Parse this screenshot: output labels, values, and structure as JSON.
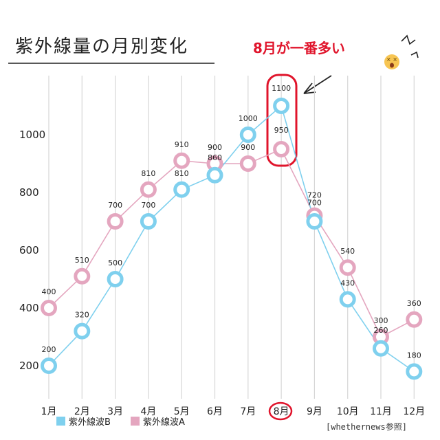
{
  "chart_data": {
    "type": "line",
    "title": "紫外線量の月別変化",
    "callout": "8月が一番多い",
    "source": "[whethernews参照]",
    "categories": [
      "1月",
      "2月",
      "3月",
      "4月",
      "5月",
      "6月",
      "7月",
      "8月",
      "9月",
      "10月",
      "11月",
      "12月"
    ],
    "highlight_category": "8月",
    "yticks": [
      200,
      400,
      600,
      800,
      1000
    ],
    "ylim": [
      150,
      1150
    ],
    "grid": "vertical",
    "legend_position": "bottom-left",
    "series": [
      {
        "name": "紫外線波B",
        "color": "#7fd0ee",
        "values": [
          200,
          320,
          500,
          700,
          810,
          860,
          1000,
          1100,
          700,
          430,
          260,
          180
        ]
      },
      {
        "name": "紫外線波A",
        "color": "#e4a6bf",
        "values": [
          400,
          510,
          700,
          810,
          910,
          900,
          900,
          950,
          720,
          540,
          300,
          360
        ]
      }
    ]
  },
  "colors": {
    "callout": "#e0142b",
    "grid": "#d6d6d6"
  },
  "icons": {
    "emoji": "dizzy-face-icon"
  }
}
